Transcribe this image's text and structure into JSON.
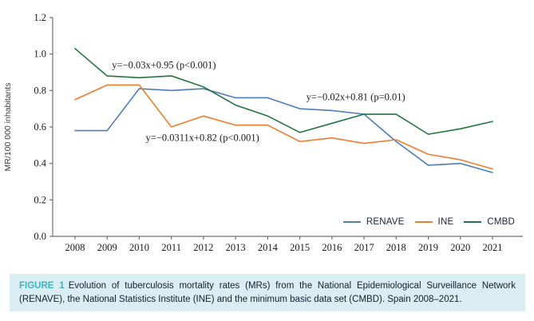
{
  "caption": {
    "label": "FIGURE 1",
    "text": "Evolution of tuberculosis mortality rates (MRs) from the National Epidemiological Surveillance Network (RENAVE), the National Statistics Institute (INE) and the minimum basic data set (CMBD). Spain 2008–2021."
  },
  "colors": {
    "renave_blue": "#4d7dba",
    "ine_orange": "#ed7d31",
    "cmbd_green": "#23753f",
    "axis": "#6e6e6e",
    "tick_text": "#1a1a1a",
    "caption_background": "#d9edf2",
    "caption_label_teal": "#3ab6c3",
    "caption_text": "#13202e"
  },
  "chart_data": {
    "type": "line",
    "title": "",
    "xlabel": "",
    "ylabel": "MR/100 000 inhabitants",
    "x": [
      2008,
      2009,
      2010,
      2011,
      2012,
      2013,
      2014,
      2015,
      2016,
      2017,
      2018,
      2019,
      2020,
      2021
    ],
    "series": [
      {
        "name": "RENAVE",
        "color": "#4d7dba",
        "values": [
          0.58,
          0.58,
          0.81,
          0.8,
          0.81,
          0.76,
          0.76,
          0.7,
          0.69,
          0.67,
          0.52,
          0.39,
          0.4,
          0.35
        ]
      },
      {
        "name": "INE",
        "color": "#ed7d31",
        "values": [
          0.75,
          0.83,
          0.83,
          0.6,
          0.66,
          0.61,
          0.61,
          0.52,
          0.54,
          0.51,
          0.53,
          0.45,
          0.42,
          0.37
        ]
      },
      {
        "name": "CMBD",
        "color": "#23753f",
        "values": [
          1.03,
          0.88,
          0.87,
          0.88,
          0.82,
          0.72,
          0.66,
          0.57,
          0.62,
          0.67,
          0.67,
          0.56,
          0.59,
          0.63
        ]
      }
    ],
    "ylim": [
      0,
      1.2
    ],
    "yticks": [
      0,
      0.2,
      0.4,
      0.6,
      0.8,
      1.0,
      1.2
    ],
    "grid": false,
    "legend_position": "bottom-right",
    "annotations": [
      {
        "series": "CMBD",
        "text": "y=−0.03x+0.95 (p<0.001)",
        "x": 2009.15,
        "y": 0.94
      },
      {
        "series": "INE",
        "text": "y=−0.0311x+0.82 (p<0.001)",
        "x": 2010.2,
        "y": 0.54
      },
      {
        "series": "RENAVE",
        "text": "y=−0.02x+0.81 (p=0.01)",
        "x": 2015.2,
        "y": 0.765
      }
    ]
  }
}
